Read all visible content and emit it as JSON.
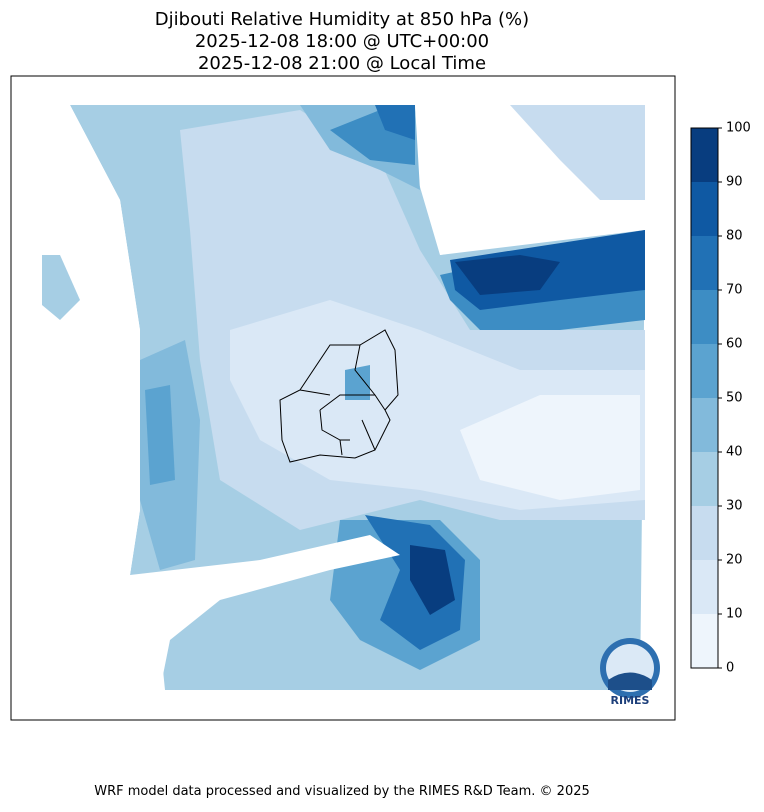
{
  "title": [
    "Djibouti Relative Humidity at 850 hPa (%)",
    "2025-12-08 18:00 @ UTC+00:00",
    "2025-12-08 21:00 @ Local Time"
  ],
  "colorbar": {
    "ticks": [
      0,
      10,
      20,
      30,
      40,
      50,
      60,
      70,
      80,
      90,
      100
    ],
    "colors": [
      "#eef5fc",
      "#dae8f6",
      "#c7dcef",
      "#a6cee4",
      "#82badb",
      "#5ba3d0",
      "#3d8dc4",
      "#2171b5",
      "#0f59a3",
      "#083d7f"
    ]
  },
  "logo": "RIMES",
  "footer": "WRF model data processed and visualized by the RIMES R&D Team. © 2025"
}
